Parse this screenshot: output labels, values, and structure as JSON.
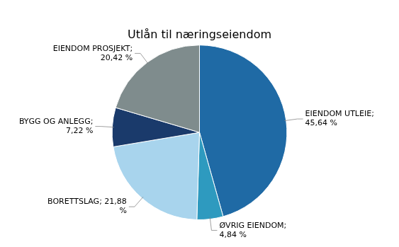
{
  "chart_data": {
    "type": "pie",
    "title": "Utlån til næringseiendom",
    "categories": [
      "EIENDOM UTLEIE;\n45,64 %",
      "ØVRIG EIENDOM;\n4,84 %",
      "BORETTSLAG; 21,88\n%",
      "BYGG OG ANLEGG;\n7,22 %",
      "EIENDOM PROSJEKT;\n20,42 %"
    ],
    "values": [
      45.64,
      4.84,
      21.88,
      7.22,
      20.42
    ],
    "colors": [
      "#1f6aa5",
      "#2e9abf",
      "#a8d4ed",
      "#1a3a6b",
      "#7f8c8d"
    ]
  }
}
